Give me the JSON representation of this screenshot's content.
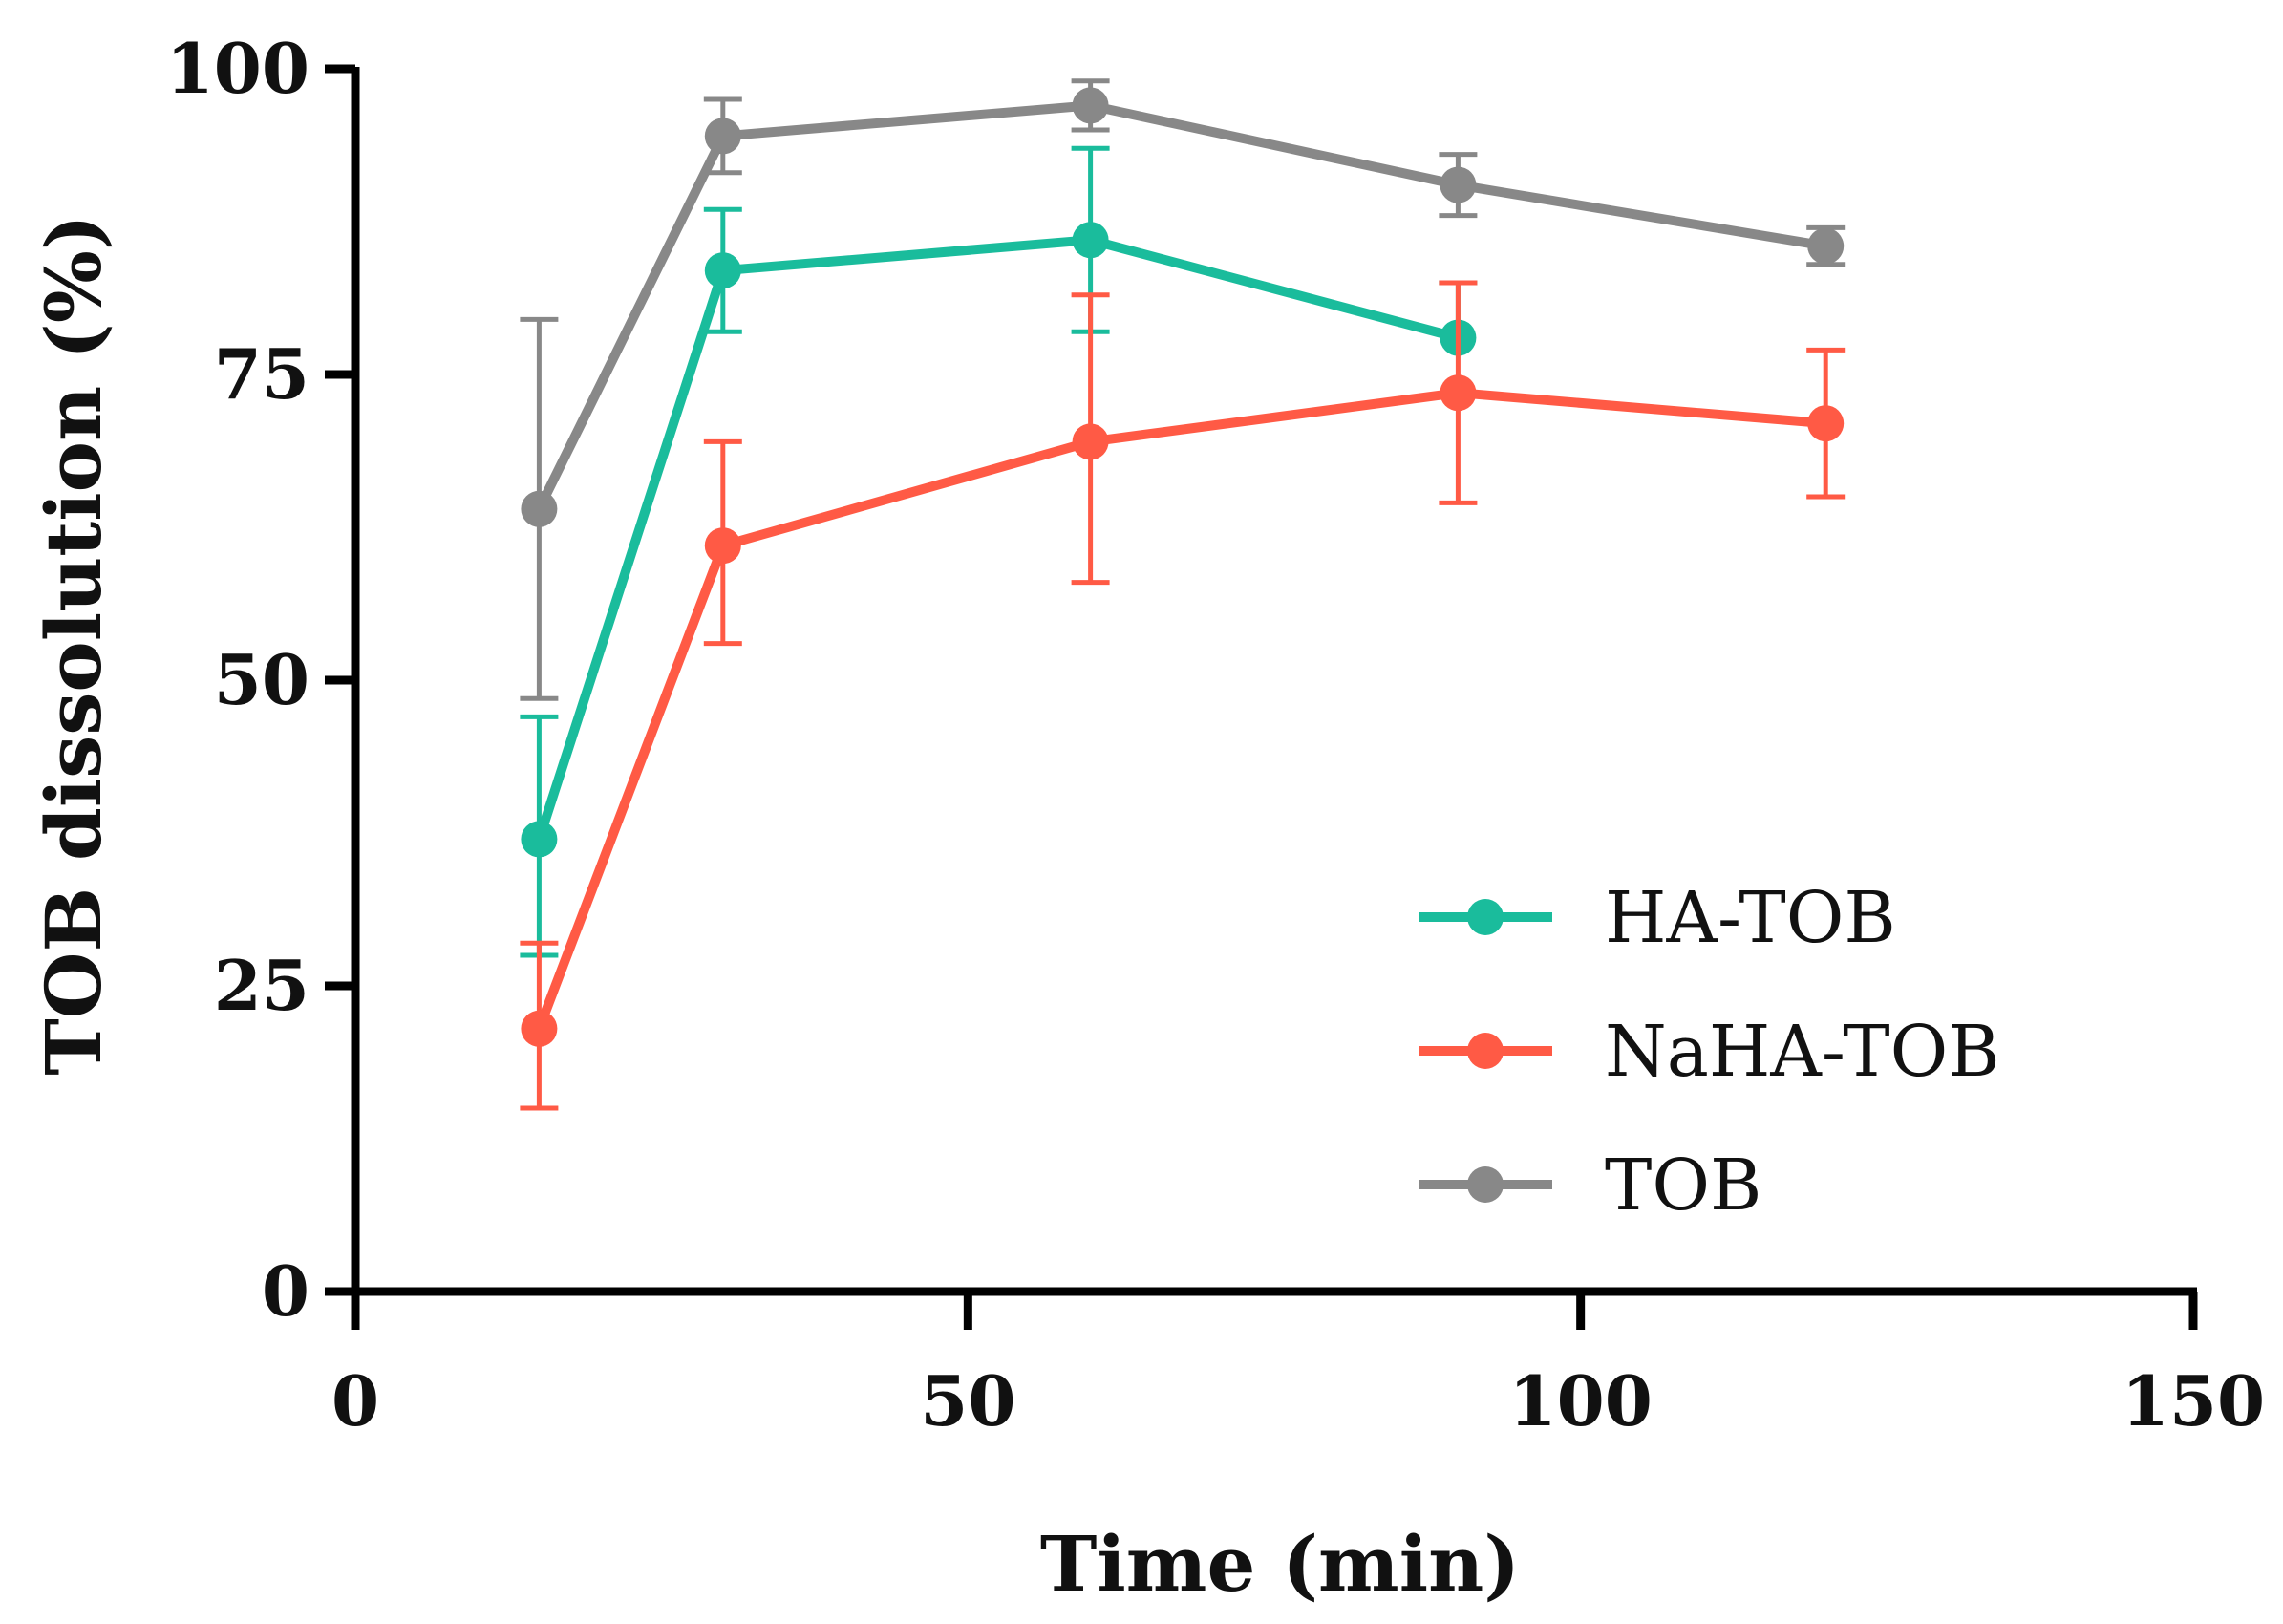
{
  "chart_data": {
    "type": "line",
    "title": "",
    "xlabel": "Time (min)",
    "ylabel": "TOB dissolution (%)",
    "xlim": [
      0,
      150
    ],
    "ylim": [
      0,
      100
    ],
    "x_ticks": [
      0,
      50,
      100,
      150
    ],
    "y_ticks": [
      0,
      25,
      50,
      75,
      100
    ],
    "x_tick_labels": [
      "0",
      "50",
      "100",
      "150"
    ],
    "y_tick_labels": [
      "0",
      "25",
      "50",
      "75",
      "100"
    ],
    "grid": false,
    "legend_position": "bottom-right",
    "series": [
      {
        "name": "HA-TOB",
        "color": "#1ABC9C",
        "x": [
          15,
          30,
          60,
          90
        ],
        "y": [
          37,
          83.5,
          86,
          78
        ],
        "err_upper": [
          47,
          88.5,
          93.5,
          82.5
        ],
        "err_lower": [
          27.5,
          78.5,
          78.5,
          78
        ]
      },
      {
        "name": "NaHA-TOB",
        "color": "#FF5A45",
        "x": [
          15,
          30,
          60,
          90,
          120
        ],
        "y": [
          21.5,
          61,
          69.5,
          73.5,
          71
        ],
        "err_upper": [
          28.5,
          69.5,
          81.5,
          82.5,
          77
        ],
        "err_lower": [
          15,
          53,
          58,
          64.5,
          65
        ]
      },
      {
        "name": "TOB",
        "color": "#888888",
        "x": [
          15,
          30,
          60,
          90,
          120
        ],
        "y": [
          64,
          94.5,
          97,
          90.5,
          85.5
        ],
        "err_upper": [
          79.5,
          97.5,
          99,
          93,
          87
        ],
        "err_lower": [
          48.5,
          91.5,
          95,
          88,
          84
        ]
      }
    ]
  }
}
